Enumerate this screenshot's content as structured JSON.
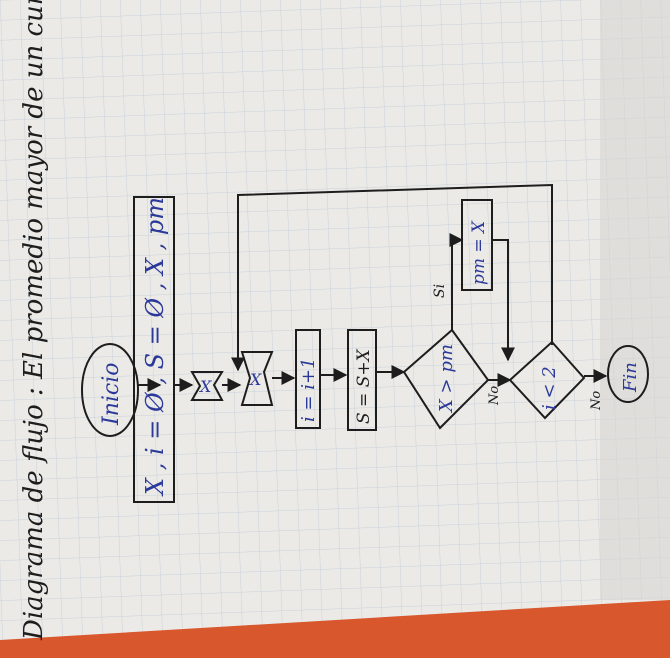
{
  "title": "Diagrama de flujo : El promedio mayor de un curso",
  "nodes": {
    "start": "Inicio",
    "declare": "X , i = Ø , S = Ø , X , pm",
    "read_x": "X",
    "read_x2": "X",
    "incr": "i = i+1",
    "sum": "S = S+X",
    "decision": "X > pm",
    "assign": "pm = X",
    "loop_check": "i < 2",
    "end": "Fin"
  },
  "labels": {
    "si": "Si",
    "no1": "No",
    "no2": "No"
  },
  "colors": {
    "paper": "#eeeeec",
    "grid": "#c9d3dc",
    "ink_black": "#1d1d1d",
    "ink_blue": "#2b3a9a",
    "orange_edge": "#d9572c"
  }
}
